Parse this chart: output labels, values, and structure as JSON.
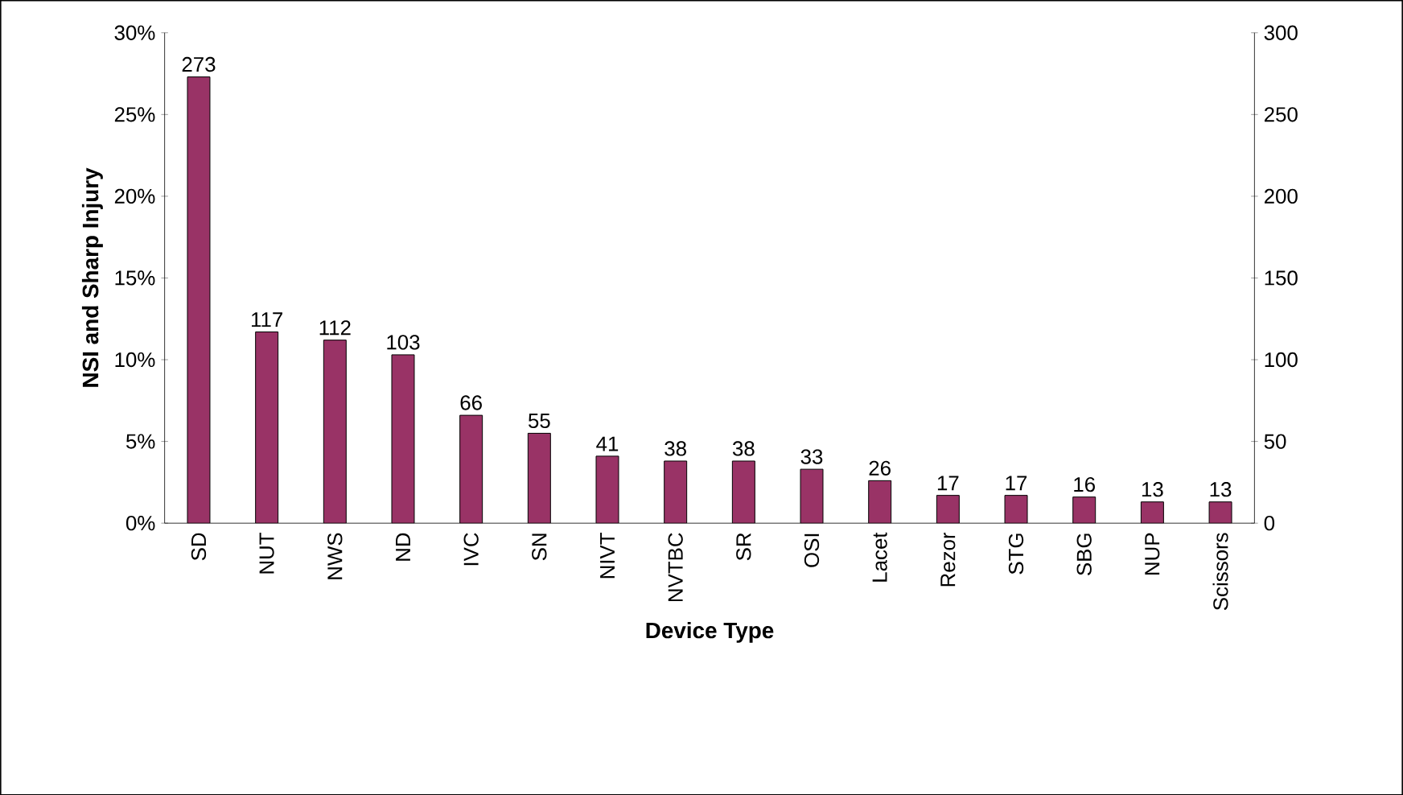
{
  "chart_data": {
    "type": "bar",
    "xlabel": "Device Type",
    "ylabel": "NSI and Sharp Injury",
    "categories": [
      "SD",
      "NUT",
      "NWS",
      "ND",
      "IVC",
      "SN",
      "NIVT",
      "NVTBC",
      "SR",
      "OSI",
      "Lacet",
      "Rezor",
      "STG",
      "SBG",
      "NUP",
      "Scissors"
    ],
    "series": [
      {
        "color": "#993366",
        "axis": "y2",
        "values": [
          273,
          117,
          112,
          103,
          66,
          55,
          41,
          38,
          38,
          33,
          26,
          17,
          17,
          16,
          13,
          13
        ]
      }
    ],
    "data_labels": true,
    "ylim": [
      0,
      30
    ],
    "yticks": [
      {
        "value": 0,
        "label": "0%"
      },
      {
        "value": 5,
        "label": "5%"
      },
      {
        "value": 10,
        "label": "10%"
      },
      {
        "value": 15,
        "label": "15%"
      },
      {
        "value": 20,
        "label": "20%"
      },
      {
        "value": 25,
        "label": "25%"
      },
      {
        "value": 30,
        "label": "30%"
      }
    ],
    "y2lim": [
      0,
      300
    ],
    "y2ticks": [
      0,
      50,
      100,
      150,
      200,
      250,
      300
    ],
    "grid": false
  }
}
